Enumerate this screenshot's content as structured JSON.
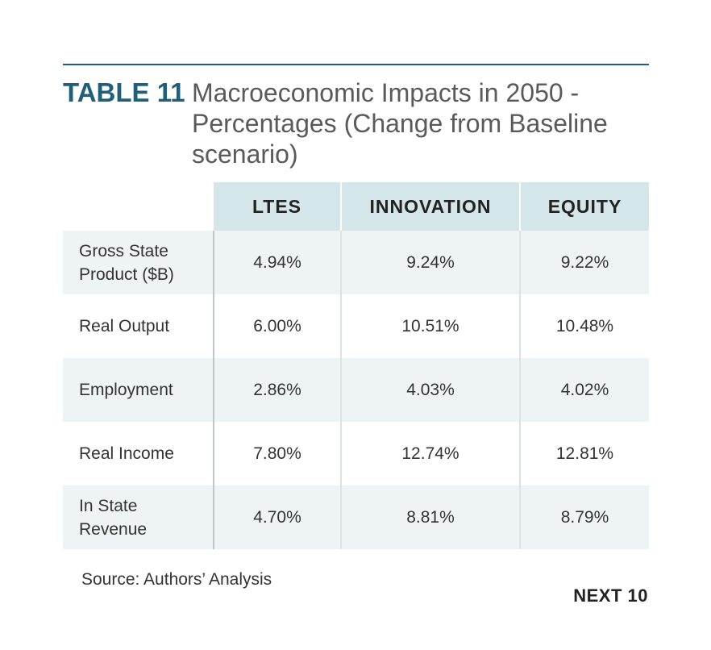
{
  "table_label": "TABLE 11",
  "table_title": "Macroeconomic Impacts in 2050 - Percentages (Change from Baseline scenario)",
  "table": {
    "columns": [
      "LTES",
      "INNOVATION",
      "EQUITY"
    ],
    "rows": [
      {
        "label": "Gross State Product ($B)",
        "values": [
          "4.94%",
          "9.24%",
          "9.22%"
        ]
      },
      {
        "label": "Real Output",
        "values": [
          "6.00%",
          "10.51%",
          "10.48%"
        ]
      },
      {
        "label": "Employment",
        "values": [
          "2.86%",
          "4.03%",
          "4.02%"
        ]
      },
      {
        "label": "Real Income",
        "values": [
          "7.80%",
          "12.74%",
          "12.81%"
        ]
      },
      {
        "label": "In State Revenue",
        "values": [
          "4.70%",
          "8.81%",
          "8.79%"
        ]
      }
    ]
  },
  "source_note": "Source: Authors’ Analysis",
  "brand": "NEXT 10",
  "colors": {
    "accent": "#1f5f7a",
    "header_fill": "#d4e6ea",
    "row_shade": "#eef4f6"
  }
}
